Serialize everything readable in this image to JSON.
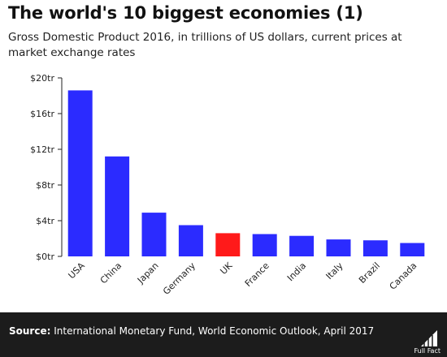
{
  "header": {
    "title": "The world's 10 biggest economies (1)",
    "subtitle": "Gross Domestic Product 2016, in trillions of US dollars, current prices at market exchange rates"
  },
  "chart_data": {
    "type": "bar",
    "categories": [
      "USA",
      "China",
      "Japan",
      "Germany",
      "UK",
      "France",
      "India",
      "Italy",
      "Brazil",
      "Canada"
    ],
    "values": [
      18.6,
      11.2,
      4.9,
      3.5,
      2.6,
      2.5,
      2.3,
      1.9,
      1.8,
      1.5
    ],
    "y_ticks": [
      0,
      4,
      8,
      12,
      16,
      20
    ],
    "y_tick_labels": [
      "$0tr",
      "$4tr",
      "$8tr",
      "$12tr",
      "$16tr",
      "$20tr"
    ],
    "ylim": [
      0,
      20
    ],
    "grid": false,
    "legend": "none",
    "colors": {
      "default": "#2b2bff",
      "highlight": "#ff1a1a",
      "highlight_category": "UK"
    }
  },
  "footer": {
    "source_label": "Source:",
    "source_text": "International Monetary Fund, World Economic Outlook, April 2017",
    "logo_text": "Full Fact",
    "logo_icon": "full-fact-logo-icon"
  }
}
